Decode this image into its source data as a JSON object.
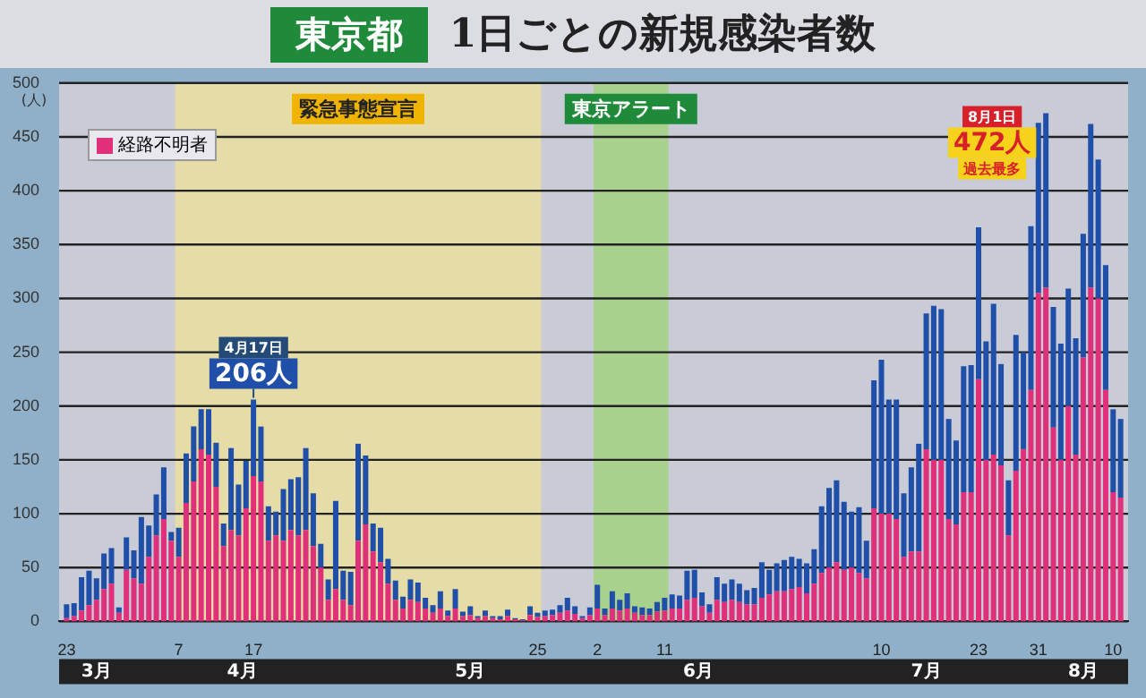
{
  "chart_data": {
    "type": "bar",
    "stacked": true,
    "subtitle": "東京都",
    "title": "1日ごとの新規感染者数",
    "ylabel": "(人)",
    "x": [
      "--03-23",
      "--03-24",
      "--03-25",
      "--03-26",
      "--03-27",
      "--03-28",
      "--03-29",
      "--03-30",
      "--03-31",
      "--04-01",
      "--04-02",
      "--04-03",
      "--04-04",
      "--04-05",
      "--04-06",
      "--04-07",
      "--04-08",
      "--04-09",
      "--04-10",
      "--04-11",
      "--04-12",
      "--04-13",
      "--04-14",
      "--04-15",
      "--04-16",
      "--04-17",
      "--04-18",
      "--04-19",
      "--04-20",
      "--04-21",
      "--04-22",
      "--04-23",
      "--04-24",
      "--04-25",
      "--04-26",
      "--04-27",
      "--04-28",
      "--04-29",
      "--04-30",
      "--05-01",
      "--05-02",
      "--05-03",
      "--05-04",
      "--05-05",
      "--05-06",
      "--05-07",
      "--05-08",
      "--05-09",
      "--05-10",
      "--05-11",
      "--05-12",
      "--05-13",
      "--05-14",
      "--05-15",
      "--05-16",
      "--05-17",
      "--05-18",
      "--05-19",
      "--05-20",
      "--05-21",
      "--05-22",
      "--05-23",
      "--05-24",
      "--05-25",
      "--05-26",
      "--05-27",
      "--05-28",
      "--05-29",
      "--05-30",
      "--05-31",
      "--06-01",
      "--06-02",
      "--06-03",
      "--06-04",
      "--06-05",
      "--06-06",
      "--06-07",
      "--06-08",
      "--06-09",
      "--06-10",
      "--06-11",
      "--06-12",
      "--06-13",
      "--06-14",
      "--06-15",
      "--06-16",
      "--06-17",
      "--06-18",
      "--06-19",
      "--06-20",
      "--06-21",
      "--06-22",
      "--06-23",
      "--06-24",
      "--06-25",
      "--06-26",
      "--06-27",
      "--06-28",
      "--06-29",
      "--06-30",
      "--07-01",
      "--07-02",
      "--07-03",
      "--07-04",
      "--07-05",
      "--07-06",
      "--07-07",
      "--07-08",
      "--07-09",
      "--07-10",
      "--07-11",
      "--07-12",
      "--07-13",
      "--07-14",
      "--07-15",
      "--07-16",
      "--07-17",
      "--07-18",
      "--07-19",
      "--07-20",
      "--07-21",
      "--07-22",
      "--07-23",
      "--07-24",
      "--07-25",
      "--07-26",
      "--07-27",
      "--07-28",
      "--07-29",
      "--07-30",
      "--07-31",
      "--08-01",
      "--08-02",
      "--08-03",
      "--08-04",
      "--08-05",
      "--08-06",
      "--08-07",
      "--08-08",
      "--08-09",
      "--08-10",
      "--08-11"
    ],
    "series": [
      {
        "name": "経路不明者",
        "color": "#e0307a",
        "values": [
          3,
          5,
          10,
          15,
          20,
          30,
          35,
          8,
          48,
          40,
          35,
          60,
          80,
          95,
          75,
          60,
          110,
          130,
          160,
          155,
          125,
          70,
          85,
          80,
          105,
          135,
          130,
          75,
          80,
          75,
          85,
          80,
          85,
          70,
          50,
          20,
          30,
          20,
          15,
          75,
          90,
          65,
          55,
          35,
          20,
          12,
          20,
          18,
          12,
          8,
          12,
          5,
          12,
          5,
          6,
          3,
          5,
          3,
          2,
          5,
          2,
          1,
          6,
          4,
          5,
          6,
          8,
          10,
          7,
          3,
          6,
          12,
          6,
          12,
          10,
          12,
          8,
          6,
          6,
          9,
          10,
          12,
          12,
          20,
          22,
          14,
          8,
          20,
          18,
          20,
          18,
          16,
          16,
          22,
          25,
          28,
          28,
          30,
          32,
          26,
          35,
          45,
          50,
          55,
          48,
          50,
          45,
          40,
          105,
          100,
          100,
          95,
          60,
          65,
          65,
          160,
          150,
          150,
          95,
          90,
          120,
          120,
          225,
          150,
          155,
          145,
          80,
          140,
          160,
          215,
          305,
          310,
          180,
          150,
          200,
          155,
          245,
          310,
          300,
          215,
          120,
          115
        ]
      },
      {
        "color": "#1f4fa8",
        "values": [
          13,
          12,
          31,
          32,
          20,
          33,
          33,
          5,
          30,
          26,
          62,
          29,
          38,
          48,
          8,
          27,
          46,
          51,
          37,
          42,
          41,
          21,
          76,
          47,
          44,
          71,
          51,
          32,
          22,
          48,
          47,
          54,
          76,
          49,
          22,
          19,
          82,
          27,
          31,
          90,
          64,
          26,
          32,
          23,
          18,
          11,
          19,
          18,
          10,
          7,
          16,
          5,
          18,
          4,
          8,
          2,
          5,
          2,
          3,
          6,
          1,
          1,
          8,
          4,
          5,
          5,
          7,
          12,
          7,
          2,
          7,
          22,
          6,
          16,
          10,
          14,
          6,
          7,
          6,
          9,
          12,
          13,
          12,
          27,
          26,
          13,
          8,
          21,
          17,
          19,
          17,
          13,
          15,
          33,
          23,
          26,
          29,
          30,
          26,
          28,
          32,
          62,
          74,
          76,
          63,
          52,
          61,
          35,
          119,
          143,
          106,
          111,
          59,
          78,
          100,
          126,
          143,
          140,
          93,
          78,
          117,
          118,
          141,
          110,
          140,
          94,
          51,
          126,
          90,
          152,
          158,
          162,
          112,
          108,
          109,
          108,
          115,
          152,
          129,
          116,
          77,
          73
        ]
      }
    ],
    "xlim": [
      "--03-22",
      "--08-12"
    ],
    "xticks": [
      {
        "value": "--03-23",
        "label": "23"
      },
      {
        "value": "--04-07",
        "label": "7"
      },
      {
        "value": "--04-17",
        "label": "17"
      },
      {
        "value": "--05-25",
        "label": "25"
      },
      {
        "value": "--06-02",
        "label": "2"
      },
      {
        "value": "--06-11",
        "label": "11"
      },
      {
        "value": "--07-10",
        "label": "10"
      },
      {
        "value": "--07-23",
        "label": "23"
      },
      {
        "value": "--07-31",
        "label": "31"
      },
      {
        "value": "--08-10",
        "label": "10"
      }
    ],
    "ylim": [
      0,
      500
    ],
    "yticks": [
      0,
      50,
      100,
      150,
      200,
      250,
      300,
      350,
      400,
      450,
      500
    ],
    "grid": "y",
    "legend": "top left",
    "bands": [
      {
        "axis": "x",
        "from": "--04-07",
        "to": "--05-25",
        "label": "緊急事態宣言",
        "color": "#e6dca8"
      },
      {
        "axis": "x",
        "from": "--06-02",
        "to": "--06-11",
        "label": "東京アラート",
        "color": "#a9d18e"
      }
    ],
    "annotations": [
      "3月",
      "4月",
      "5月",
      "6月",
      "7月",
      "8月",
      "4月17日",
      {
        "text": "206人",
        "x": "--04-17",
        "y": 206
      },
      "8月1日",
      {
        "text": "472人",
        "x": "--08-01",
        "y": 472
      },
      "過去最多"
    ]
  }
}
